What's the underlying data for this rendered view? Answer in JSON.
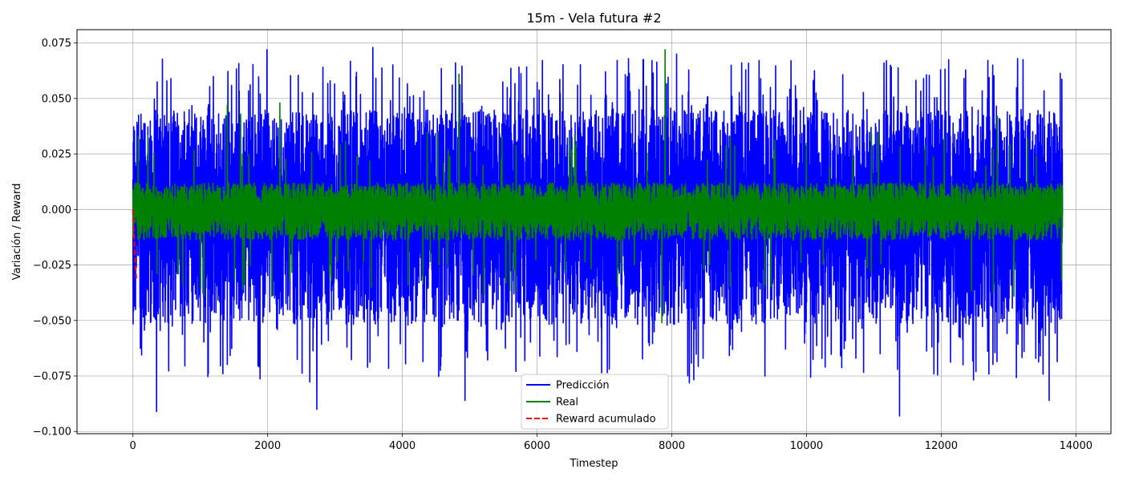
{
  "chart_data": {
    "type": "line",
    "title": "15m - Vela futura #2",
    "xlabel": "Timestep",
    "ylabel": "Variación / Reward",
    "xlim": [
      -830,
      14520
    ],
    "ylim": [
      -0.101,
      0.081
    ],
    "xticks": [
      0,
      2000,
      4000,
      6000,
      8000,
      10000,
      12000,
      14000
    ],
    "xtick_labels": [
      "0",
      "2000",
      "4000",
      "6000",
      "8000",
      "10000",
      "12000",
      "14000"
    ],
    "yticks": [
      -0.1,
      -0.075,
      -0.05,
      -0.025,
      0.0,
      0.025,
      0.05,
      0.075
    ],
    "ytick_labels": [
      "−0.100",
      "−0.075",
      "−0.050",
      "−0.025",
      "0.000",
      "0.025",
      "0.050",
      "0.075"
    ],
    "grid": true,
    "legend_position": "lower-center",
    "series": [
      {
        "name": "Predicción",
        "color": "#0000ff",
        "style": "solid",
        "x_range": [
          0,
          13800
        ],
        "n_points": 13800,
        "typical_range": [
          -0.06,
          0.05
        ],
        "approx_max": 0.073,
        "approx_min": -0.093,
        "notable_points": [
          {
            "x": 350,
            "y": -0.091
          },
          {
            "x": 1990,
            "y": 0.072
          },
          {
            "x": 2730,
            "y": -0.09
          },
          {
            "x": 3560,
            "y": 0.073
          },
          {
            "x": 4930,
            "y": -0.086
          },
          {
            "x": 8070,
            "y": 0.07
          },
          {
            "x": 11380,
            "y": -0.093
          },
          {
            "x": 13130,
            "y": 0.068
          },
          {
            "x": 13600,
            "y": -0.086
          }
        ]
      },
      {
        "name": "Real",
        "color": "#008000",
        "style": "solid",
        "x_range": [
          0,
          13800
        ],
        "n_points": 13800,
        "typical_range": [
          -0.012,
          0.012
        ],
        "approx_max": 0.072,
        "approx_min": -0.051,
        "notable_points": [
          {
            "x": 1400,
            "y": 0.047
          },
          {
            "x": 1600,
            "y": 0.043
          },
          {
            "x": 2180,
            "y": 0.048
          },
          {
            "x": 4840,
            "y": 0.061
          },
          {
            "x": 7900,
            "y": 0.072
          },
          {
            "x": 7850,
            "y": -0.051
          },
          {
            "x": 12830,
            "y": 0.042
          }
        ]
      },
      {
        "name": "Reward acumulado",
        "color": "#ff0000",
        "style": "dashed",
        "x": [
          0,
          10,
          20,
          30,
          40,
          50
        ],
        "y": [
          0.0,
          -0.008,
          -0.014,
          -0.02,
          -0.026,
          -0.031
        ]
      }
    ]
  }
}
